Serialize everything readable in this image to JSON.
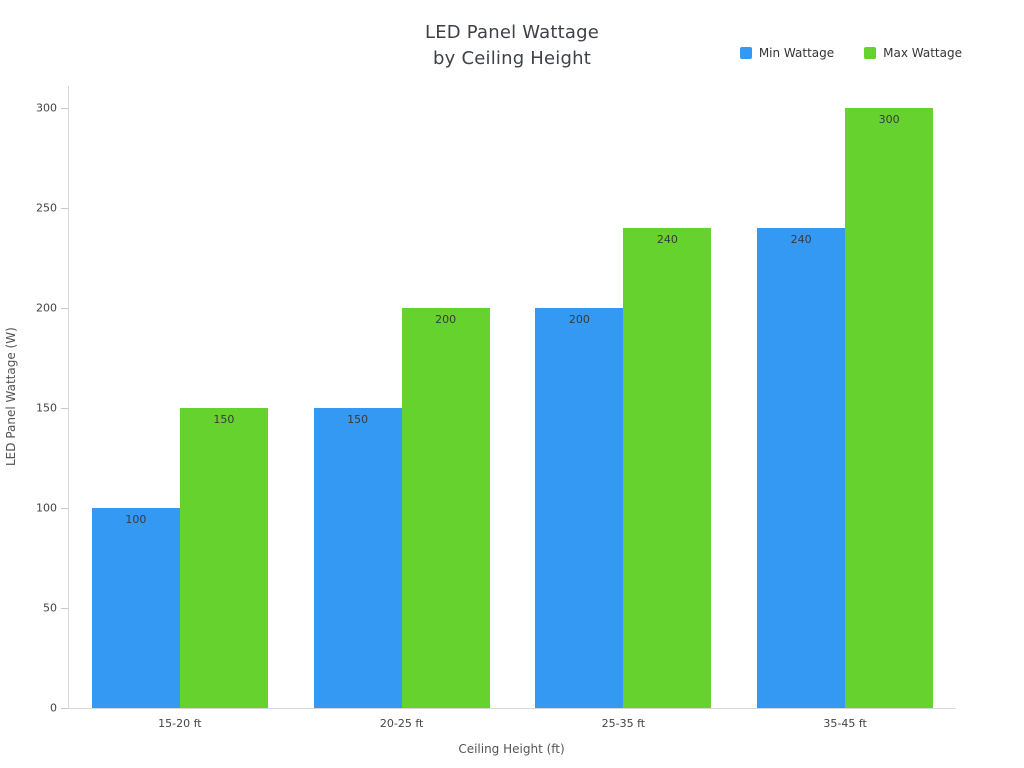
{
  "title": {
    "line1": "LED Panel Wattage",
    "line2": "by Ceiling Height"
  },
  "legend": {
    "items": [
      {
        "label": "Min Wattage",
        "color": "#3399f3"
      },
      {
        "label": "Max Wattage",
        "color": "#66d22e"
      }
    ]
  },
  "axes": {
    "x_title": "Ceiling Height (ft)",
    "y_title": "LED Panel Wattage (W)"
  },
  "chart_data": {
    "type": "bar",
    "title": "LED Panel Wattage by Ceiling Height",
    "categories": [
      "15-20 ft",
      "20-25 ft",
      "25-35 ft",
      "35-45 ft"
    ],
    "series": [
      {
        "name": "Min Wattage",
        "color": "#3399f3",
        "values": [
          100,
          150,
          200,
          240
        ]
      },
      {
        "name": "Max Wattage",
        "color": "#66d22e",
        "values": [
          150,
          200,
          240,
          300
        ]
      }
    ],
    "xlabel": "Ceiling Height (ft)",
    "ylabel": "LED Panel Wattage (W)",
    "ylim": [
      0,
      300
    ],
    "yticks": [
      0,
      50,
      100,
      150,
      200,
      250,
      300
    ],
    "grid": false,
    "bar_value_labels": true,
    "legend_position": "top-right",
    "background": "#ffffff"
  }
}
